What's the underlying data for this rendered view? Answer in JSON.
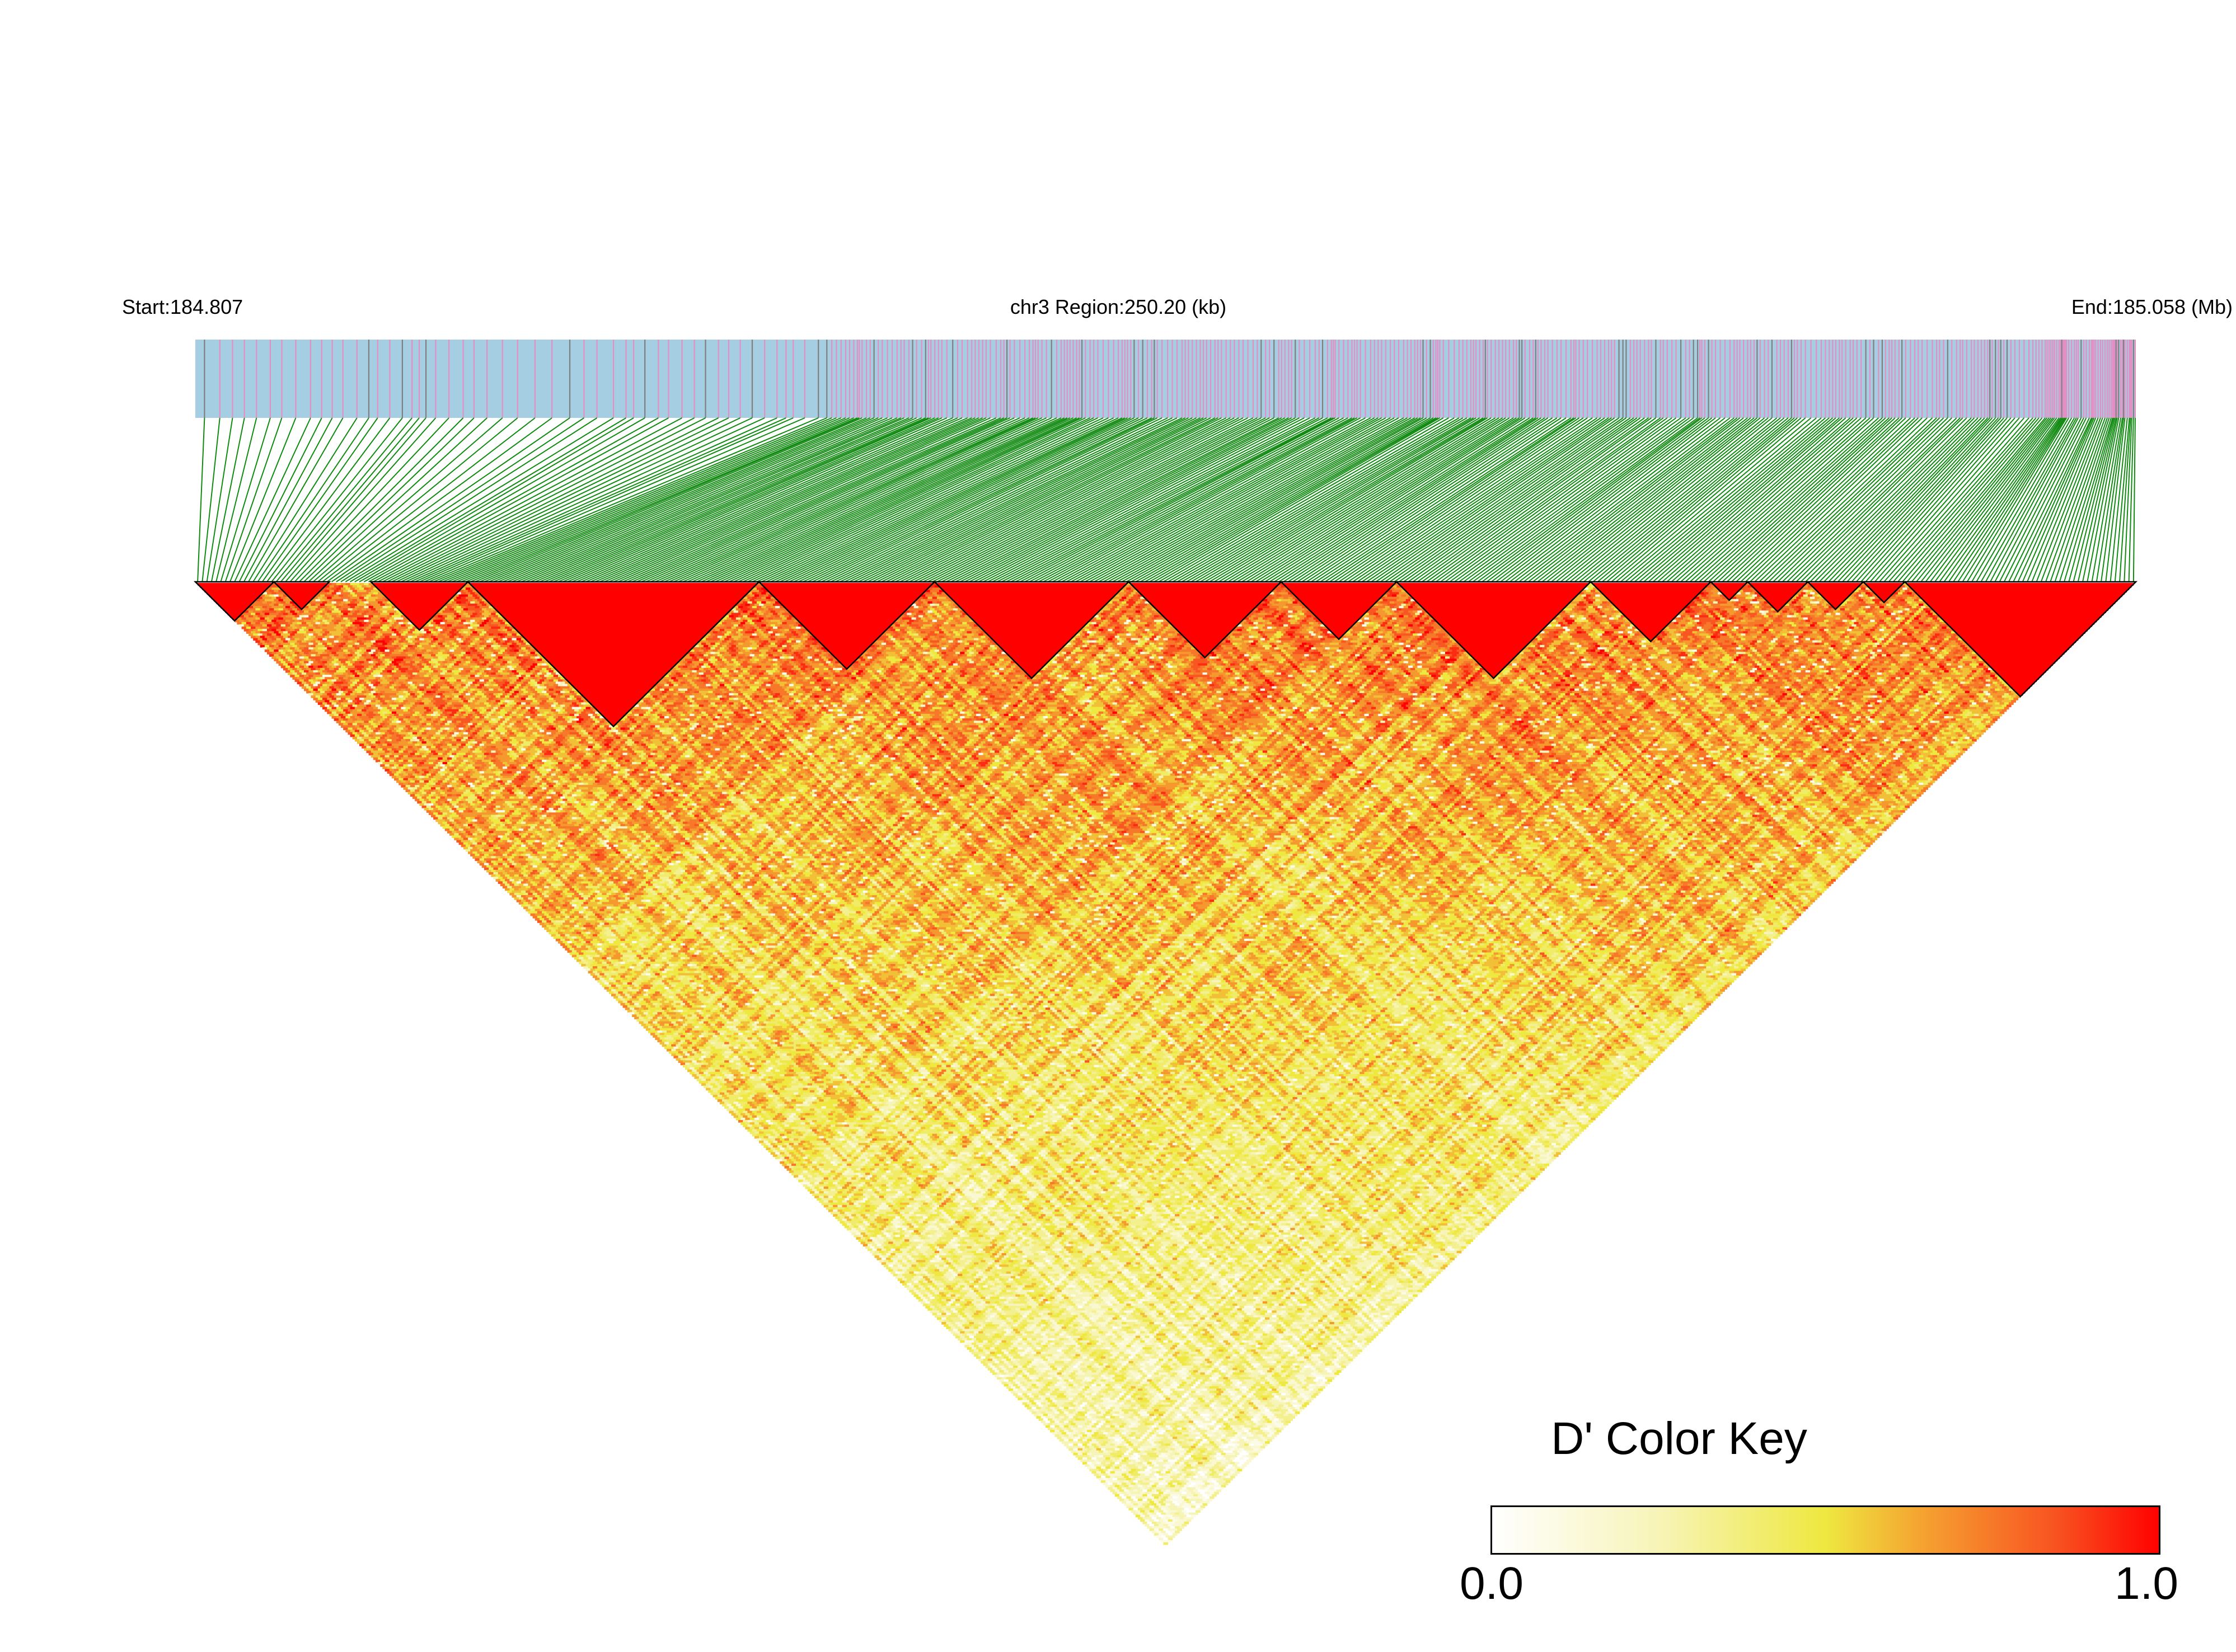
{
  "chart_data": {
    "type": "heatmap",
    "subtype": "linkage-disequilibrium-triangle",
    "chromosome": "chr3",
    "header": {
      "start_label": "Start:184.807",
      "region_label": "chr3 Region:250.20 (kb)",
      "end_label": "End:185.058 (Mb)"
    },
    "region": {
      "start_mb": 184.807,
      "end_mb": 185.058,
      "length_kb": 250.2
    },
    "snp_count_approx": 420,
    "color_key": {
      "title": "D' Color Key",
      "min_label": "0.0",
      "max_label": "1.0",
      "range": [
        0.0,
        1.0
      ],
      "colors": [
        "#ffffff",
        "#f5f3a0",
        "#eee840",
        "#f5a030",
        "#f86020",
        "#ff0000"
      ]
    },
    "blocks_approx_fraction_of_snps": [
      [
        0.0,
        0.04
      ],
      [
        0.04,
        0.07
      ],
      [
        0.09,
        0.14
      ],
      [
        0.14,
        0.29
      ],
      [
        0.29,
        0.38
      ],
      [
        0.38,
        0.48
      ],
      [
        0.48,
        0.56
      ],
      [
        0.56,
        0.62
      ],
      [
        0.62,
        0.72
      ],
      [
        0.72,
        0.78
      ],
      [
        0.78,
        0.8
      ],
      [
        0.8,
        0.83
      ],
      [
        0.83,
        0.86
      ],
      [
        0.86,
        0.88
      ],
      [
        0.88,
        1.0
      ]
    ]
  },
  "colors": {
    "snp_track_background": "#a6cee3",
    "snp_tick_pink": "#e28fc4",
    "snp_tick_gray": "#7f7f7f",
    "connector_lines": "#108a10",
    "block_outline": "#000000"
  }
}
